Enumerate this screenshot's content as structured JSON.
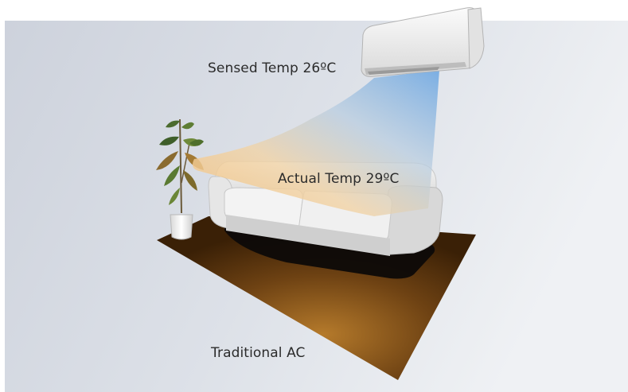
{
  "labels": {
    "sensed_temp": "Sensed Temp 26ºC",
    "actual_temp": "Actual Temp 29ºC",
    "caption": "Traditional AC"
  },
  "colors": {
    "background_left": "#cfd4de",
    "background_right": "#eef0f4",
    "airflow_cool": "#7fb3e6",
    "airflow_warm": "#f3c88a",
    "rug": "#7a4a16",
    "sofa": "#ececec",
    "ac_unit": "#f2f2f2"
  },
  "icons": {
    "ac": "air-conditioner-icon",
    "plant": "potted-plant-icon",
    "sofa": "sofa-icon",
    "rug": "rug-icon"
  }
}
